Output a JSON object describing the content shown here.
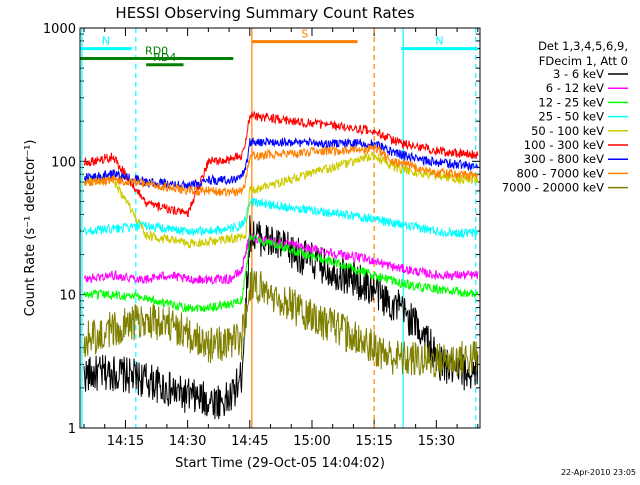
{
  "chart_data": {
    "type": "line",
    "title": "HESSI Observing Summary Count Rates",
    "xlabel": "Start Time (29-Oct-05 14:04:02)",
    "ylabel": "Count Rate (s⁻¹ detector⁻¹)",
    "y_scale": "log",
    "ylim": [
      1,
      1000
    ],
    "xlim": [
      "14:04:02",
      "15:40:32"
    ],
    "grid": false,
    "legend_placement": "right",
    "x_ticks": [
      "14:15",
      "14:30",
      "14:45",
      "15:00",
      "15:15",
      "15:30"
    ],
    "x_tick_times": [
      "14:15",
      "14:30",
      "14:45",
      "15:00",
      "15:15",
      "15:30"
    ],
    "y_ticks": [
      {
        "value": 1,
        "label": "1"
      },
      {
        "value": 10,
        "label": "10"
      },
      {
        "value": 100,
        "label": "100"
      },
      {
        "value": 1000,
        "label": "1000"
      }
    ],
    "legend_header": [
      "Det 1,3,4,5,6,9,",
      "FDecim 1, Att 0"
    ],
    "gaps": [
      [
        "14:45:30",
        "15:15:10"
      ]
    ],
    "series": [
      {
        "name": "3 - 6 keV",
        "color": "#000000",
        "x": [
          "14:05",
          "14:12",
          "14:20",
          "14:28",
          "14:35",
          "14:40",
          "14:43",
          "14:44",
          "14:45",
          "15:15",
          "15:18",
          "15:21",
          "15:25",
          "15:28",
          "15:30",
          "15:35",
          "15:40"
        ],
        "y": [
          2.5,
          2.6,
          2.3,
          1.8,
          1.6,
          1.6,
          2.4,
          8,
          29,
          11,
          9,
          8,
          6,
          4.5,
          3.2,
          2.6,
          2.6
        ]
      },
      {
        "name": "6 - 12 keV",
        "color": "#ff00ff",
        "x": [
          "14:05",
          "14:12",
          "14:20",
          "14:25",
          "14:30",
          "14:35",
          "14:40",
          "14:43",
          "14:44",
          "14:45",
          "15:15",
          "15:20",
          "15:25",
          "15:30",
          "15:35",
          "15:40"
        ],
        "y": [
          13,
          14,
          13,
          14,
          13,
          13,
          13,
          15,
          21,
          27,
          18,
          16,
          15,
          14,
          14,
          14
        ]
      },
      {
        "name": "12 - 25 keV",
        "color": "#00ff00",
        "x": [
          "14:05",
          "14:12",
          "14:20",
          "14:25",
          "14:30",
          "14:35",
          "14:40",
          "14:43",
          "14:44",
          "14:45",
          "15:15",
          "15:20",
          "15:25",
          "15:30",
          "15:35",
          "15:40"
        ],
        "y": [
          10,
          10,
          9.5,
          8.5,
          8,
          8,
          8.5,
          9,
          14,
          27,
          14,
          12.5,
          11.5,
          11,
          10.5,
          10
        ]
      },
      {
        "name": "25 - 50 keV",
        "color": "#00ffff",
        "x": [
          "14:05",
          "14:12",
          "14:20",
          "14:25",
          "14:30",
          "14:35",
          "14:40",
          "14:43",
          "14:44",
          "14:45",
          "15:15",
          "15:20",
          "15:25",
          "15:30",
          "15:35",
          "15:40"
        ],
        "y": [
          30,
          31,
          33,
          31,
          30,
          30,
          31,
          33,
          36,
          50,
          37,
          34,
          32,
          30,
          29,
          29
        ]
      },
      {
        "name": "50 - 100 keV",
        "color": "#cccc00",
        "x": [
          "14:05",
          "14:12",
          "14:20",
          "14:25",
          "14:30",
          "14:35",
          "14:40",
          "14:43",
          "14:44",
          "14:45",
          "15:15",
          "15:20",
          "15:25",
          "15:30",
          "15:35",
          "15:40"
        ],
        "y": [
          72,
          73,
          28,
          26,
          24,
          25,
          26,
          27,
          28,
          60,
          110,
          90,
          82,
          78,
          74,
          72
        ]
      },
      {
        "name": "100 - 300 keV",
        "color": "#ff0000",
        "x": [
          "14:05",
          "14:12",
          "14:20",
          "14:25",
          "14:30",
          "14:35",
          "14:40",
          "14:43",
          "14:44",
          "14:45",
          "15:15",
          "15:20",
          "15:25",
          "15:30",
          "15:35",
          "15:40"
        ],
        "y": [
          98,
          108,
          48,
          44,
          40,
          100,
          103,
          110,
          140,
          220,
          170,
          140,
          130,
          120,
          115,
          112
        ]
      },
      {
        "name": "300 - 800 keV",
        "color": "#0000ff",
        "x": [
          "14:05",
          "14:12",
          "14:20",
          "14:25",
          "14:30",
          "14:35",
          "14:40",
          "14:43",
          "14:44",
          "14:45",
          "15:15",
          "15:20",
          "15:25",
          "15:30",
          "15:35",
          "15:40"
        ],
        "y": [
          75,
          80,
          70,
          68,
          65,
          72,
          73,
          76,
          90,
          140,
          135,
          115,
          105,
          98,
          95,
          92
        ]
      },
      {
        "name": "800 - 7000 keV",
        "color": "#ff8000",
        "x": [
          "14:05",
          "14:12",
          "14:20",
          "14:25",
          "14:30",
          "14:35",
          "14:40",
          "14:43",
          "14:44",
          "14:45",
          "15:15",
          "15:20",
          "15:25",
          "15:30",
          "15:35",
          "15:40"
        ],
        "y": [
          70,
          72,
          68,
          64,
          60,
          60,
          58,
          60,
          70,
          110,
          125,
          100,
          90,
          82,
          80,
          78
        ]
      },
      {
        "name": "7000 - 20000 keV",
        "color": "#808000",
        "x": [
          "14:05",
          "14:12",
          "14:20",
          "14:25",
          "14:28",
          "14:35",
          "14:40",
          "14:43",
          "14:44",
          "14:45",
          "15:15",
          "15:18",
          "15:22",
          "15:30",
          "15:35",
          "15:40"
        ],
        "y": [
          4.5,
          5.5,
          6.5,
          6,
          5.5,
          4.2,
          4.3,
          4.5,
          7,
          12,
          4,
          3.5,
          3.3,
          3.2,
          3.3,
          3.4
        ]
      }
    ],
    "annotations": [
      {
        "text": "N",
        "color": "#00ffff",
        "bar_from": "14:04:02",
        "bar_to": "14:16:30",
        "level": 700
      },
      {
        "text": "N",
        "color": "#00ffff",
        "bar_from": "15:21:30",
        "bar_to": "15:40:00",
        "level": 700
      },
      {
        "text": "RD0",
        "color": "#008000",
        "bar_from": "14:04:02",
        "bar_to": "14:41:00",
        "level": 590
      },
      {
        "text": "RD4",
        "color": "#008000",
        "bar_from": "14:20:00",
        "bar_to": "14:29:00",
        "level": 530
      },
      {
        "text": "S",
        "color": "#ff8000",
        "bar_from": "14:45:30",
        "bar_to": "15:11:00",
        "level": 790
      }
    ],
    "vertical_markers": [
      {
        "time": "14:04:30",
        "color": "#00ffff",
        "style": "solid"
      },
      {
        "time": "14:17:30",
        "color": "#00ffff",
        "style": "dashed"
      },
      {
        "time": "14:45:30",
        "color": "#ff8000",
        "style": "solid"
      },
      {
        "time": "15:15:00",
        "color": "#ff8000",
        "style": "dashed"
      },
      {
        "time": "15:22:00",
        "color": "#00ffff",
        "style": "solid"
      },
      {
        "time": "15:39:30",
        "color": "#00ffff",
        "style": "dashed"
      }
    ]
  },
  "footer_timestamp": "22-Apr-2010 23:05"
}
